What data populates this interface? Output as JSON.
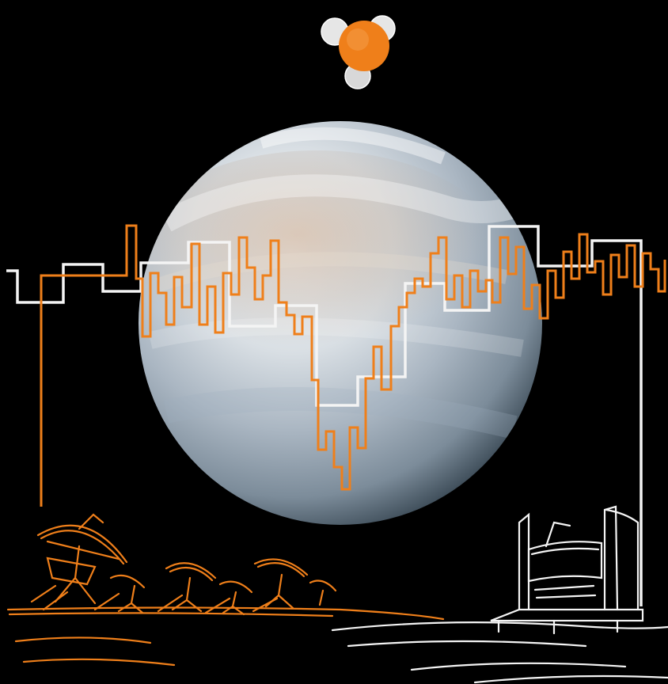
{
  "scene": {
    "background": "#000000",
    "orange": "#ef7f1a",
    "white": "#f4f4f4",
    "planet_light": "#eef2f5",
    "planet_mid": "#b9c6d2",
    "planet_dark": "#5d7080",
    "planet_warm": "#c9a688"
  },
  "elements": {
    "planet": "venus-planet",
    "molecule": "phosphine-molecule-icon",
    "spectrum_orange": "orange-spectrum-line",
    "spectrum_white": "white-spectrum-line",
    "telescope_array": "radio-dish-array-sketch",
    "telescope_dome": "telescope-dome-sketch"
  }
}
